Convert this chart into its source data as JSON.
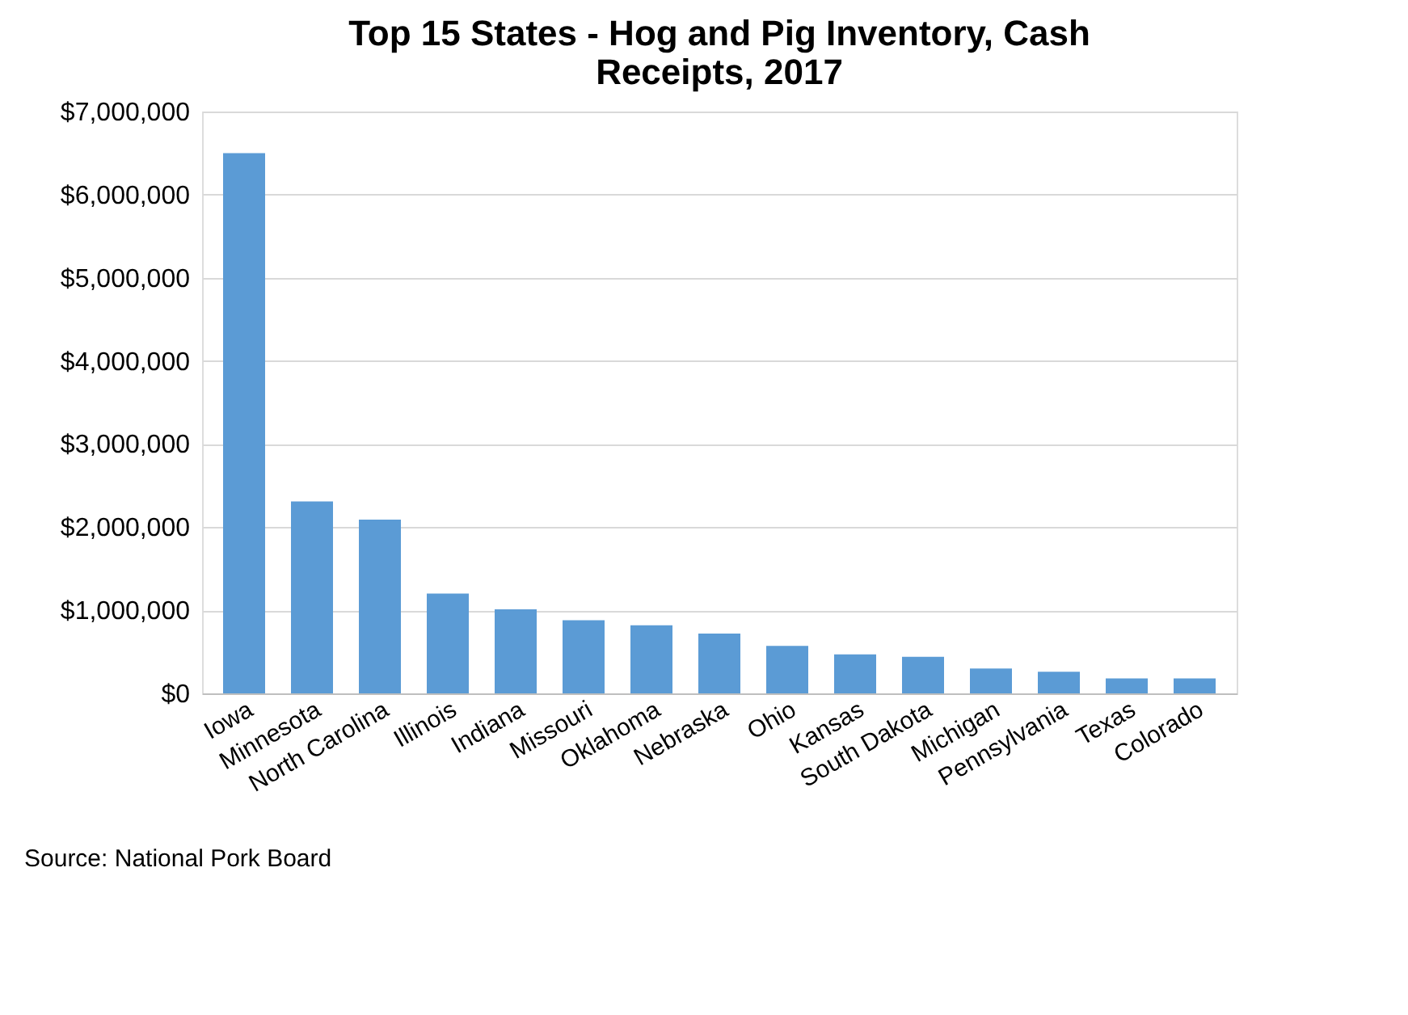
{
  "chart_data": {
    "type": "bar",
    "title": "Top 15 States - Hog and Pig Inventory, Cash Receipts, 2017",
    "categories": [
      "Iowa",
      "Minnesota",
      "North Carolina",
      "Illinois",
      "Indiana",
      "Missouri",
      "Oklahoma",
      "Nebraska",
      "Ohio",
      "Kansas",
      "South Dakota",
      "Michigan",
      "Pennsylvania",
      "Texas",
      "Colorado"
    ],
    "values": [
      6500000,
      2310000,
      2090000,
      1200000,
      1010000,
      880000,
      820000,
      720000,
      570000,
      470000,
      440000,
      300000,
      260000,
      180000,
      180000
    ],
    "color": "#5b9bd5",
    "ylim": [
      0,
      7000000
    ],
    "yticks": [
      {
        "value": 0,
        "label": "$0"
      },
      {
        "value": 1000000,
        "label": "$1,000,000"
      },
      {
        "value": 2000000,
        "label": "$2,000,000"
      },
      {
        "value": 3000000,
        "label": "$3,000,000"
      },
      {
        "value": 4000000,
        "label": "$4,000,000"
      },
      {
        "value": 5000000,
        "label": "$5,000,000"
      },
      {
        "value": 6000000,
        "label": "$6,000,000"
      },
      {
        "value": 7000000,
        "label": "$7,000,000"
      }
    ],
    "grid": "y",
    "annotations": [
      "Source: National Pork Board"
    ]
  }
}
